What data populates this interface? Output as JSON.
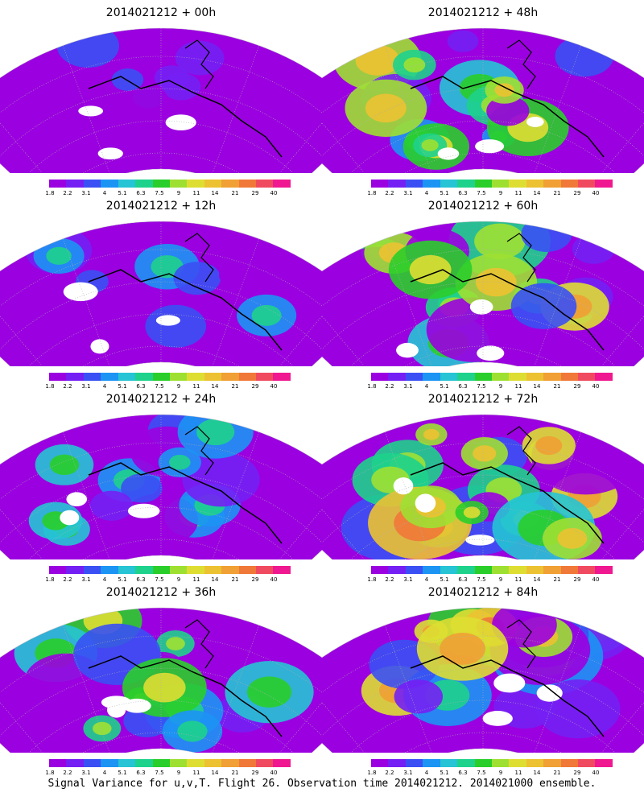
{
  "colorbar": {
    "colors": [
      "#9b00e0",
      "#7420f4",
      "#3a50f4",
      "#1c94f4",
      "#26c4d4",
      "#1ed28c",
      "#2ace2a",
      "#9ee032",
      "#dede32",
      "#ecc232",
      "#f0a034",
      "#f07838",
      "#f04a60",
      "#f01890"
    ],
    "tick_labels": [
      "1.8",
      "2.2",
      "3.1",
      "4",
      "5.1",
      "6.3",
      "7.5",
      "9",
      "11",
      "14",
      "21",
      "29",
      "40"
    ]
  },
  "panels": [
    {
      "title": "2014021212 + 00h",
      "intensity": 0.05
    },
    {
      "title": "2014021212 + 48h",
      "intensity": 0.55
    },
    {
      "title": "2014021212 + 12h",
      "intensity": 0.2
    },
    {
      "title": "2014021212 + 60h",
      "intensity": 0.65
    },
    {
      "title": "2014021212 + 24h",
      "intensity": 0.32
    },
    {
      "title": "2014021212 + 72h",
      "intensity": 0.75
    },
    {
      "title": "2014021212 + 36h",
      "intensity": 0.45
    },
    {
      "title": "2014021212 + 84h",
      "intensity": 0.8
    }
  ],
  "caption": "Signal Variance for u,v,T. Flight 26. Observation time 2014021212. 2014021000 ensemble."
}
